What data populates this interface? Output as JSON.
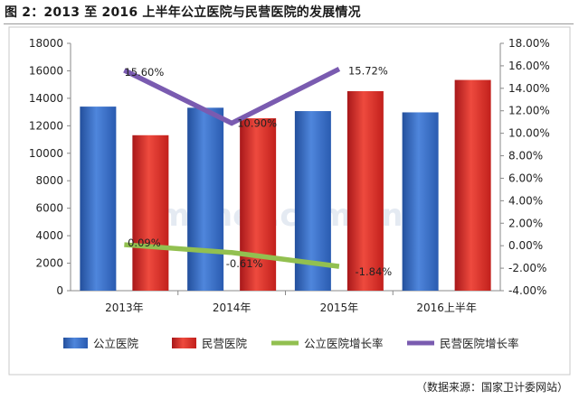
{
  "title": "图 2：2013 至 2016 上半年公立医院与民营医院的发展情况",
  "source": "（数据来源：国家卫计委网站）",
  "watermark": "menet.com.cn",
  "colors": {
    "public_bar": "#3a6fc8",
    "private_bar": "#e0302a",
    "public_growth": "#92c050",
    "private_growth": "#7a5bb0"
  },
  "chart_data": {
    "type": "bar",
    "title": "",
    "categories": [
      "2013年",
      "2014年",
      "2015年",
      "2016上半年"
    ],
    "series": [
      {
        "name": "公立医院",
        "kind": "bar",
        "axis": "left",
        "values": [
          13396,
          13314,
          13069,
          12977
        ]
      },
      {
        "name": "民营医院",
        "kind": "bar",
        "axis": "left",
        "values": [
          11313,
          12546,
          14518,
          15335
        ]
      },
      {
        "name": "公立医院增长率",
        "kind": "line",
        "axis": "right",
        "values": [
          0.09,
          -0.61,
          -1.84,
          null
        ],
        "labels": [
          "0.09%",
          "-0.61%",
          "-1.84%",
          ""
        ]
      },
      {
        "name": "民营医院增长率",
        "kind": "line",
        "axis": "right",
        "values": [
          15.6,
          10.9,
          15.72,
          null
        ],
        "labels": [
          "15.60%",
          "10.90%",
          "15.72%",
          ""
        ]
      }
    ],
    "y_left": {
      "min": 0,
      "max": 18000,
      "step": 2000,
      "ticks": [
        "0",
        "2000",
        "4000",
        "6000",
        "8000",
        "10000",
        "12000",
        "14000",
        "16000",
        "18000"
      ]
    },
    "y_right": {
      "min": -4,
      "max": 18,
      "step": 2,
      "ticks": [
        "-4.00%",
        "-2.00%",
        "0.00%",
        "2.00%",
        "4.00%",
        "6.00%",
        "8.00%",
        "10.00%",
        "12.00%",
        "14.00%",
        "16.00%",
        "18.00%"
      ]
    },
    "grid": false,
    "legend": "bottom"
  }
}
